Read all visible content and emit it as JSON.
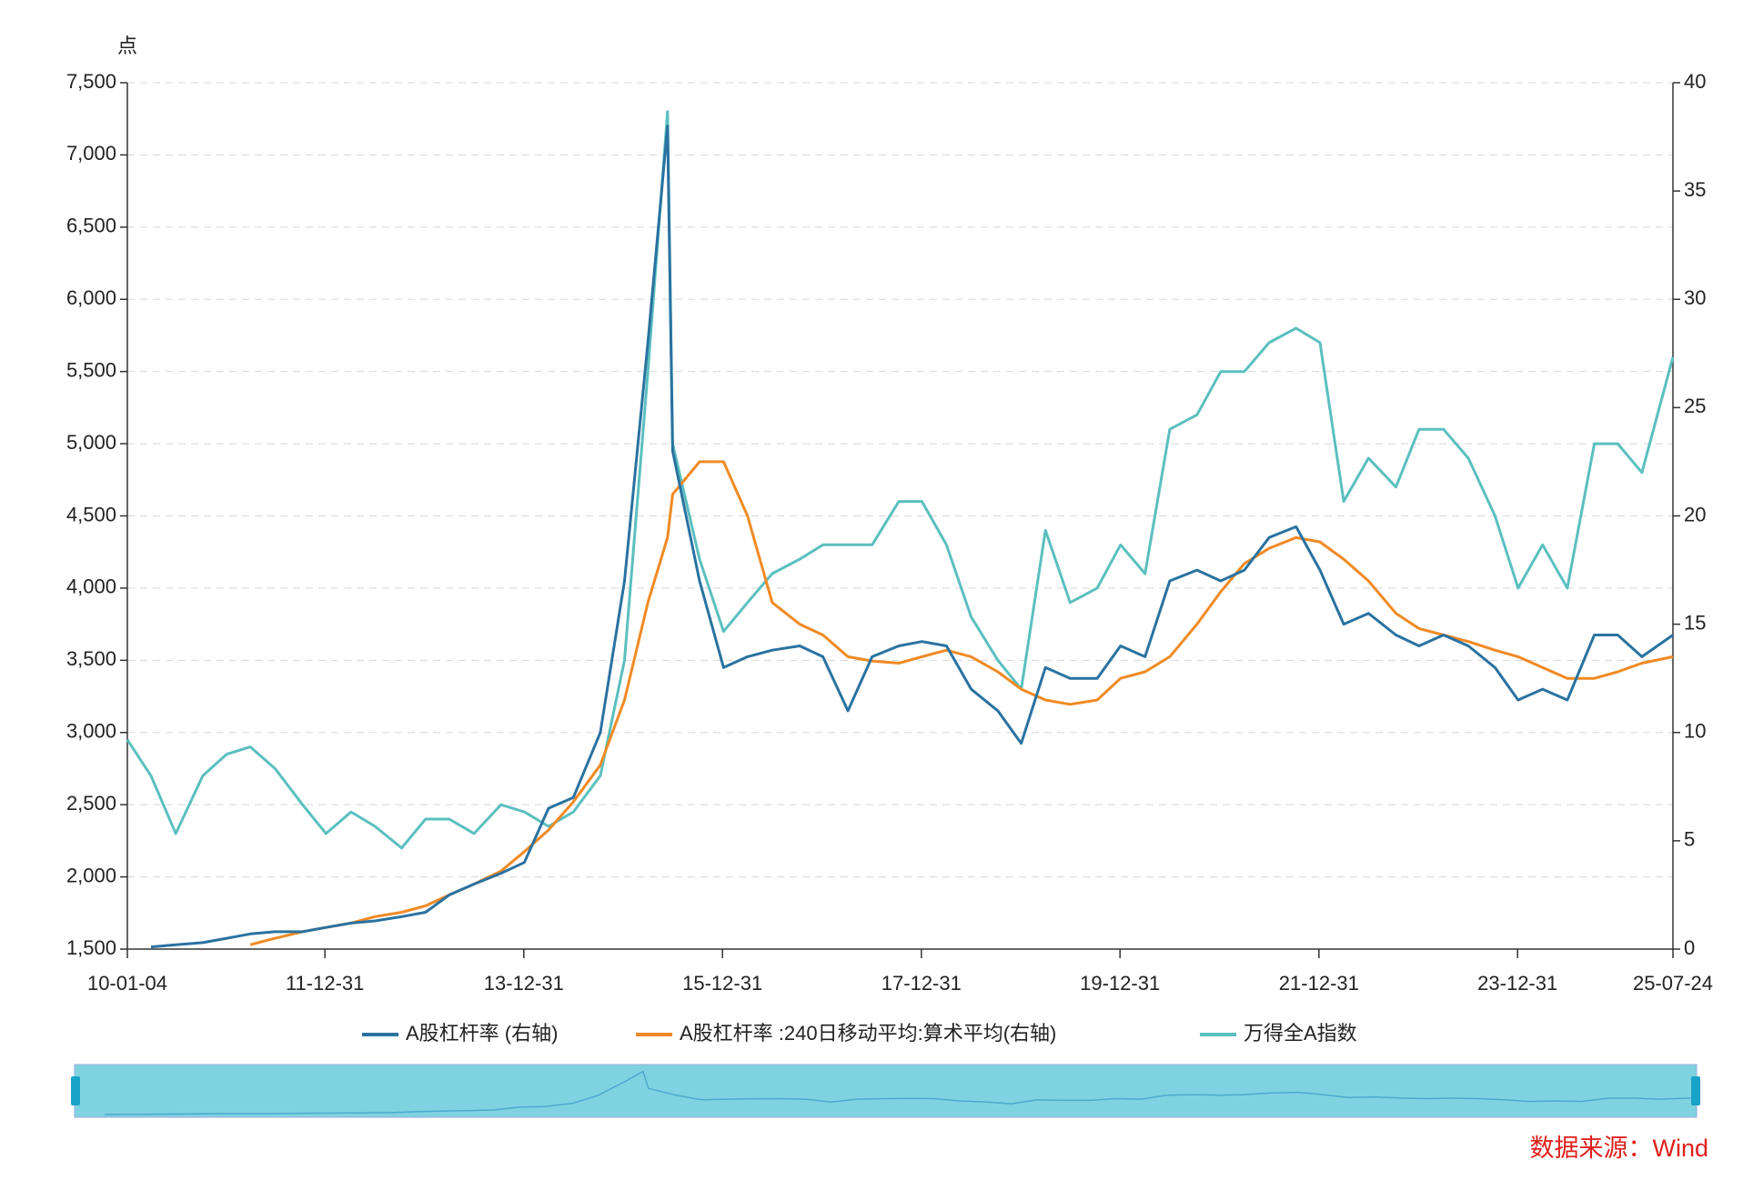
{
  "chart_data": {
    "type": "line",
    "y_axis_label": "点",
    "source": "数据来源：Wind",
    "x": [
      "10-01-04",
      "10-04-01",
      "10-07-01",
      "10-10-08",
      "11-01-04",
      "11-04-01",
      "11-07-01",
      "11-10-10",
      "12-01-04",
      "12-04-05",
      "12-07-02",
      "12-10-08",
      "13-01-04",
      "13-04-01",
      "13-07-01",
      "13-10-08",
      "14-01-02",
      "14-04-01",
      "14-07-01",
      "14-10-08",
      "15-01-05",
      "15-04-01",
      "15-06-12",
      "15-07-01",
      "15-10-08",
      "16-01-04",
      "16-04-01",
      "16-07-01",
      "16-10-10",
      "17-01-03",
      "17-04-05",
      "17-07-03",
      "17-10-09",
      "18-01-02",
      "18-04-02",
      "18-07-02",
      "18-10-08",
      "19-01-02",
      "19-04-01",
      "19-07-01",
      "19-10-08",
      "20-01-02",
      "20-04-01",
      "20-07-01",
      "20-10-09",
      "21-01-04",
      "21-04-01",
      "21-07-01",
      "21-10-08",
      "22-01-04",
      "22-04-01",
      "22-07-01",
      "22-10-10",
      "23-01-03",
      "23-04-03",
      "23-07-03",
      "23-10-09",
      "24-01-02",
      "24-04-01",
      "24-07-01",
      "24-10-08",
      "25-01-02",
      "25-04-01",
      "25-07-24"
    ],
    "series": [
      {
        "name": "A股杠杆率 (右轴)",
        "color": "#2a72a0",
        "axis": "y2",
        "values": [
          null,
          0.1,
          0.2,
          0.3,
          0.5,
          0.7,
          0.8,
          0.8,
          1.0,
          1.2,
          1.3,
          1.5,
          1.7,
          2.5,
          3.0,
          3.5,
          4.0,
          6.5,
          7.0,
          10.0,
          17,
          28,
          38,
          23,
          17,
          13,
          13.5,
          13.8,
          14,
          13.5,
          11,
          13.5,
          14,
          14.2,
          14,
          12,
          11,
          9.5,
          13,
          12.5,
          12.5,
          14,
          13.5,
          17,
          17.5,
          17,
          17.5,
          19,
          19.5,
          17.5,
          15,
          15.5,
          14.5,
          14,
          14.5,
          14,
          13,
          11.5,
          12,
          11.5,
          14.5,
          14.5,
          13.5,
          14.5
        ]
      },
      {
        "name": "A股杠杆率 :240日移动平均:算术平均(右轴)",
        "color": "#f08a24",
        "axis": "y2",
        "values": [
          null,
          null,
          null,
          null,
          null,
          0.2,
          0.5,
          0.8,
          1.0,
          1.2,
          1.5,
          1.7,
          2.0,
          2.5,
          3.0,
          3.6,
          4.5,
          5.5,
          6.8,
          8.5,
          11.5,
          16,
          19,
          21,
          22.5,
          22.5,
          20,
          16,
          15,
          14.5,
          13.5,
          13.3,
          13.2,
          13.5,
          13.8,
          13.5,
          12.8,
          12,
          11.5,
          11.3,
          11.5,
          12.5,
          12.8,
          13.5,
          15,
          16.5,
          17.8,
          18.5,
          19,
          18.8,
          18,
          17,
          15.5,
          14.8,
          14.5,
          14.2,
          13.8,
          13.5,
          13,
          12.5,
          12.5,
          12.8,
          13.2,
          13.5
        ]
      },
      {
        "name": "万得全A指数",
        "color": "#5bbfbf",
        "values": [
          2950,
          2700,
          2300,
          2700,
          2850,
          2900,
          2750,
          2500,
          2300,
          2450,
          2350,
          2200,
          2400,
          2400,
          2300,
          2500,
          2450,
          2350,
          2450,
          2700,
          3500,
          5500,
          7300,
          5000,
          4200,
          3700,
          3900,
          4100,
          4200,
          4300,
          4300,
          4300,
          4600,
          4600,
          4300,
          3800,
          3500,
          3300,
          4400,
          3900,
          4000,
          4300,
          4100,
          5100,
          5200,
          5500,
          5500,
          5700,
          5800,
          5700,
          4600,
          4900,
          4700,
          5100,
          5100,
          4900,
          4500,
          4000,
          4300,
          4000,
          5000,
          5000,
          4800,
          5600
        ]
      }
    ],
    "xlim": [
      "10-01-04",
      "25-07-24"
    ],
    "xticks": [
      "10-01-04",
      "11-12-31",
      "13-12-31",
      "15-12-31",
      "17-12-31",
      "19-12-31",
      "21-12-31",
      "23-12-31",
      "25-07-24"
    ],
    "ylim": [
      1500,
      7500
    ],
    "yticks": [
      {
        "value": 1500,
        "label": "1,500"
      },
      {
        "value": 2000,
        "label": "2,000"
      },
      {
        "value": 2500,
        "label": "2,500"
      },
      {
        "value": 3000,
        "label": "3,000"
      },
      {
        "value": 3500,
        "label": "3,500"
      },
      {
        "value": 4000,
        "label": "4,000"
      },
      {
        "value": 4500,
        "label": "4,500"
      },
      {
        "value": 5000,
        "label": "5,000"
      },
      {
        "value": 5500,
        "label": "5,500"
      },
      {
        "value": 6000,
        "label": "6,000"
      },
      {
        "value": 6500,
        "label": "6,500"
      },
      {
        "value": 7000,
        "label": "7,000"
      },
      {
        "value": 7500,
        "label": "7,500"
      }
    ],
    "y2lim": [
      0,
      40
    ],
    "y2ticks": [
      0,
      5,
      10,
      15,
      20,
      25,
      30,
      35,
      40
    ],
    "grid": true
  }
}
